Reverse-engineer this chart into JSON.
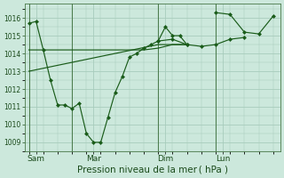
{
  "background_color": "#cce8dc",
  "grid_color": "#a8ccbc",
  "line_color": "#1a5c1a",
  "xlabel": "Pression niveau de la mer ( hPa )",
  "ylim": [
    1008.5,
    1016.8
  ],
  "yticks": [
    1009,
    1010,
    1011,
    1012,
    1013,
    1014,
    1015,
    1016
  ],
  "day_labels": [
    "Sam",
    "Mar",
    "Dim",
    "Lun"
  ],
  "day_positions": [
    0.5,
    4.5,
    9.5,
    13.5
  ],
  "vline_positions": [
    0,
    3,
    9,
    13
  ],
  "series_down": {
    "x": [
      0,
      0.5,
      1,
      1.5,
      2,
      2.5,
      3,
      3.5,
      4,
      4.5,
      5,
      5.5,
      6,
      6.5,
      7,
      7.5,
      8,
      8.5,
      9,
      9.5,
      10,
      10.5,
      11
    ],
    "y": [
      1015.7,
      1015.8,
      1014.2,
      1012.5,
      1011.1,
      1011.1,
      1010.9,
      1011.2,
      1009.5,
      1009.0,
      1009.0,
      1010.4,
      1011.8,
      1012.7,
      1013.8,
      1014.0,
      1014.3,
      1014.5,
      1014.7,
      1015.5,
      1015.0,
      1015.0,
      1014.5
    ]
  },
  "series_flat": {
    "x": [
      0,
      1,
      2,
      3,
      4,
      5,
      6,
      7,
      8,
      9,
      10,
      11
    ],
    "y": [
      1014.2,
      1014.2,
      1014.2,
      1014.2,
      1014.2,
      1014.2,
      1014.2,
      1014.2,
      1014.2,
      1014.3,
      1014.5,
      1014.5
    ]
  },
  "series_rise": {
    "x": [
      0,
      3,
      6,
      9,
      11
    ],
    "y": [
      1013.0,
      1013.5,
      1014.0,
      1014.5,
      1014.5
    ]
  },
  "series_right_markers": {
    "x": [
      9,
      10,
      11,
      12,
      13,
      14,
      15
    ],
    "y": [
      1014.7,
      1014.8,
      1014.5,
      1014.4,
      1014.5,
      1014.8,
      1014.9
    ]
  },
  "series_top_right": {
    "x": [
      13,
      14,
      15,
      16,
      17
    ],
    "y": [
      1016.3,
      1016.2,
      1015.2,
      1015.1,
      1016.1
    ]
  },
  "xlim": [
    -0.3,
    17.5
  ],
  "marker": "D",
  "markersize": 2.5,
  "linewidth": 0.85
}
